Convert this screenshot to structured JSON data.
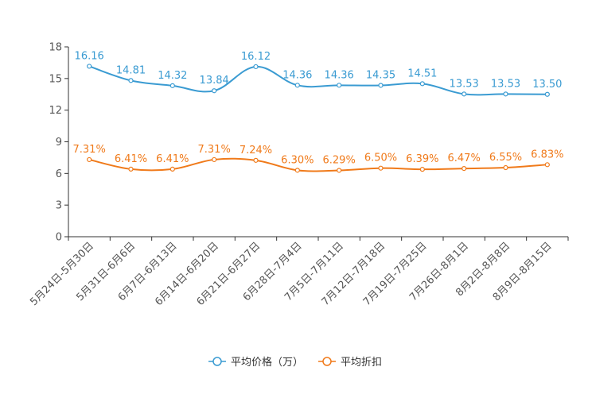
{
  "chart_data": {
    "type": "line",
    "title": "",
    "xlabel": "",
    "ylabel": "",
    "ylim": [
      0,
      18
    ],
    "yticks": [
      0,
      3,
      6,
      9,
      12,
      15,
      18
    ],
    "categories": [
      "5月24日-5月30日",
      "5月31日-6月6日",
      "6月7日-6月13日",
      "6月14日-6月20日",
      "6月21日-6月27日",
      "6月28日-7月4日",
      "7月5日-7月11日",
      "7月12日-7月18日",
      "7月19日-7月25日",
      "7月26日-8月1日",
      "8月2日-8月8日",
      "8月9日-8月15日"
    ],
    "series": [
      {
        "name": "平均价格（万）",
        "color": "#3a9bd2",
        "values": [
          16.16,
          14.81,
          14.32,
          13.84,
          16.12,
          14.36,
          14.36,
          14.35,
          14.51,
          13.53,
          13.53,
          13.5
        ],
        "labels": [
          "16.16",
          "14.81",
          "14.32",
          "13.84",
          "16.12",
          "14.36",
          "14.36",
          "14.35",
          "14.51",
          "13.53",
          "13.53",
          "13.50"
        ]
      },
      {
        "name": "平均折扣",
        "color": "#f07a1a",
        "values": [
          7.31,
          6.41,
          6.41,
          7.31,
          7.24,
          6.3,
          6.29,
          6.5,
          6.39,
          6.47,
          6.55,
          6.83
        ],
        "labels": [
          "7.31%",
          "6.41%",
          "6.41%",
          "7.31%",
          "7.24%",
          "6.30%",
          "6.29%",
          "6.50%",
          "6.39%",
          "6.47%",
          "6.55%",
          "6.83%"
        ]
      }
    ],
    "legend_position": "bottom-center"
  }
}
